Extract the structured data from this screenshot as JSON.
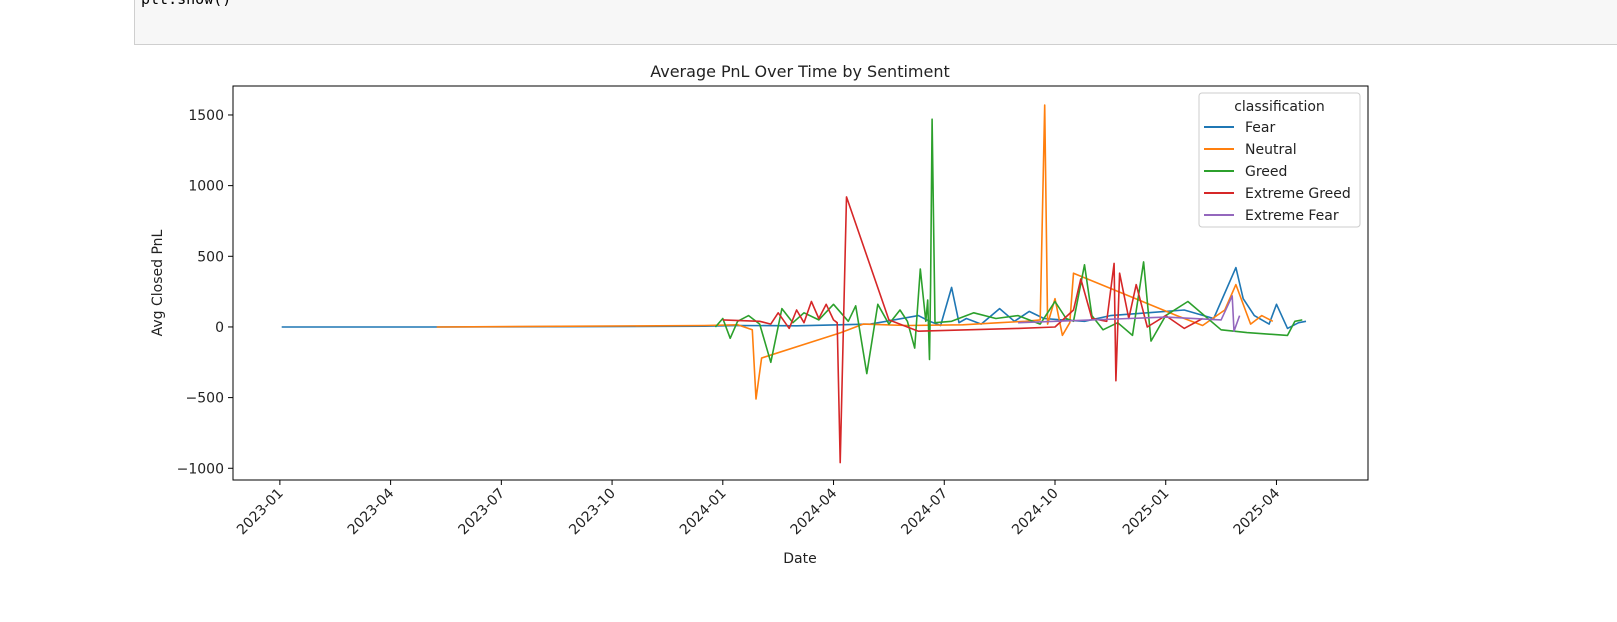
{
  "notebook": {
    "code": "plt.show()"
  },
  "chart_data": {
    "type": "line",
    "title": "Average PnL Over Time by Sentiment",
    "x_label": "Date",
    "y_label": "Avg Closed PnL",
    "legend_title": "classification",
    "legend": "upper right",
    "grid": false,
    "xlim": [
      -1.27,
      29.48
    ],
    "xticks": [
      {
        "value": 0,
        "label": "2023-01"
      },
      {
        "value": 3,
        "label": "2023-04"
      },
      {
        "value": 6,
        "label": "2023-07"
      },
      {
        "value": 9,
        "label": "2023-10"
      },
      {
        "value": 12,
        "label": "2024-01"
      },
      {
        "value": 15,
        "label": "2024-04"
      },
      {
        "value": 18,
        "label": "2024-07"
      },
      {
        "value": 21,
        "label": "2024-10"
      },
      {
        "value": 24,
        "label": "2025-01"
      },
      {
        "value": 27,
        "label": "2025-04"
      }
    ],
    "ylim": [
      -1083,
      1705
    ],
    "yticks": [
      {
        "value": -1000,
        "label": "−1000"
      },
      {
        "value": -500,
        "label": "−500"
      },
      0,
      500,
      1000,
      1500
    ],
    "series": [
      {
        "name": "Fear",
        "color": "#1f77b4",
        "x": [
          0.05,
          4,
          11.5,
          12.5,
          14,
          16,
          17.3,
          17.6,
          17.9,
          18.2,
          18.4,
          18.6,
          19,
          19.5,
          19.9,
          20.3,
          20.7,
          21.2,
          21.8,
          22.5,
          23.5,
          24.5,
          25.3,
          25.9,
          26.1,
          26.4,
          26.8,
          27,
          27.3,
          27.6,
          27.8
        ],
        "values": [
          0,
          0,
          5,
          10,
          8,
          20,
          80,
          40,
          10,
          280,
          30,
          60,
          20,
          130,
          40,
          110,
          60,
          50,
          40,
          80,
          100,
          120,
          60,
          420,
          200,
          80,
          20,
          160,
          -10,
          30,
          40
        ]
      },
      {
        "name": "Neutral",
        "color": "#ff7f0e",
        "x": [
          4.25,
          11.5,
          12.4,
          12.8,
          12.9,
          13.05,
          15.2,
          15.8,
          17,
          18.5,
          19.5,
          20.2,
          20.6,
          20.72,
          20.8,
          21.0,
          21.2,
          21.4,
          21.5,
          24.3,
          25.0,
          25.6,
          25.9,
          26.3,
          26.6,
          26.9
        ],
        "values": [
          0,
          10,
          15,
          -20,
          -510,
          -220,
          -40,
          20,
          10,
          15,
          30,
          40,
          50,
          1570,
          20,
          200,
          -60,
          30,
          380,
          80,
          10,
          120,
          300,
          20,
          80,
          40
        ]
      },
      {
        "name": "Greed",
        "color": "#2ca02c",
        "x": [
          11.8,
          12.0,
          12.2,
          12.4,
          12.7,
          13.0,
          13.3,
          13.6,
          13.9,
          14.2,
          14.6,
          15.0,
          15.4,
          15.6,
          15.9,
          16.2,
          16.5,
          16.8,
          17.0,
          17.2,
          17.35,
          17.5,
          17.55,
          17.6,
          17.63,
          17.67,
          17.75,
          18.2,
          18.8,
          19.4,
          20.0,
          20.6,
          21.0,
          21.3,
          21.5,
          21.8,
          22.0,
          22.3,
          22.7,
          23.1,
          23.4,
          23.6,
          24.0,
          24.6,
          25.5,
          26.2,
          27.3,
          27.5,
          27.7
        ],
        "values": [
          0,
          60,
          -80,
          40,
          80,
          20,
          -250,
          130,
          30,
          100,
          50,
          160,
          40,
          150,
          -330,
          160,
          20,
          120,
          40,
          -150,
          410,
          40,
          190,
          -230,
          300,
          1470,
          30,
          40,
          100,
          60,
          80,
          20,
          180,
          60,
          40,
          440,
          80,
          -20,
          30,
          -60,
          460,
          -100,
          80,
          180,
          -20,
          -40,
          -60,
          40,
          50
        ]
      },
      {
        "name": "Extreme Greed",
        "color": "#d62728",
        "x": [
          12.0,
          13.0,
          13.3,
          13.5,
          13.8,
          14.0,
          14.2,
          14.4,
          14.6,
          14.8,
          15.0,
          15.1,
          15.18,
          15.35,
          16.5,
          17.3,
          20.0,
          21.0,
          21.5,
          21.7,
          22.0,
          22.4,
          22.6,
          22.65,
          22.75,
          23.0,
          23.2,
          23.5,
          24.0,
          24.5,
          25.0
        ],
        "values": [
          50,
          40,
          20,
          100,
          -10,
          120,
          30,
          180,
          60,
          160,
          50,
          30,
          -960,
          920,
          50,
          -30,
          -10,
          0,
          120,
          340,
          60,
          40,
          450,
          -380,
          380,
          60,
          300,
          0,
          80,
          -10,
          60
        ]
      },
      {
        "name": "Extreme Fear",
        "color": "#9467bd",
        "x": [
          20.0,
          21.0,
          22.0,
          23.0,
          24.0,
          25.5,
          25.8,
          25.85,
          26.0
        ],
        "values": [
          30,
          40,
          50,
          60,
          70,
          50,
          220,
          -30,
          80
        ]
      }
    ]
  }
}
